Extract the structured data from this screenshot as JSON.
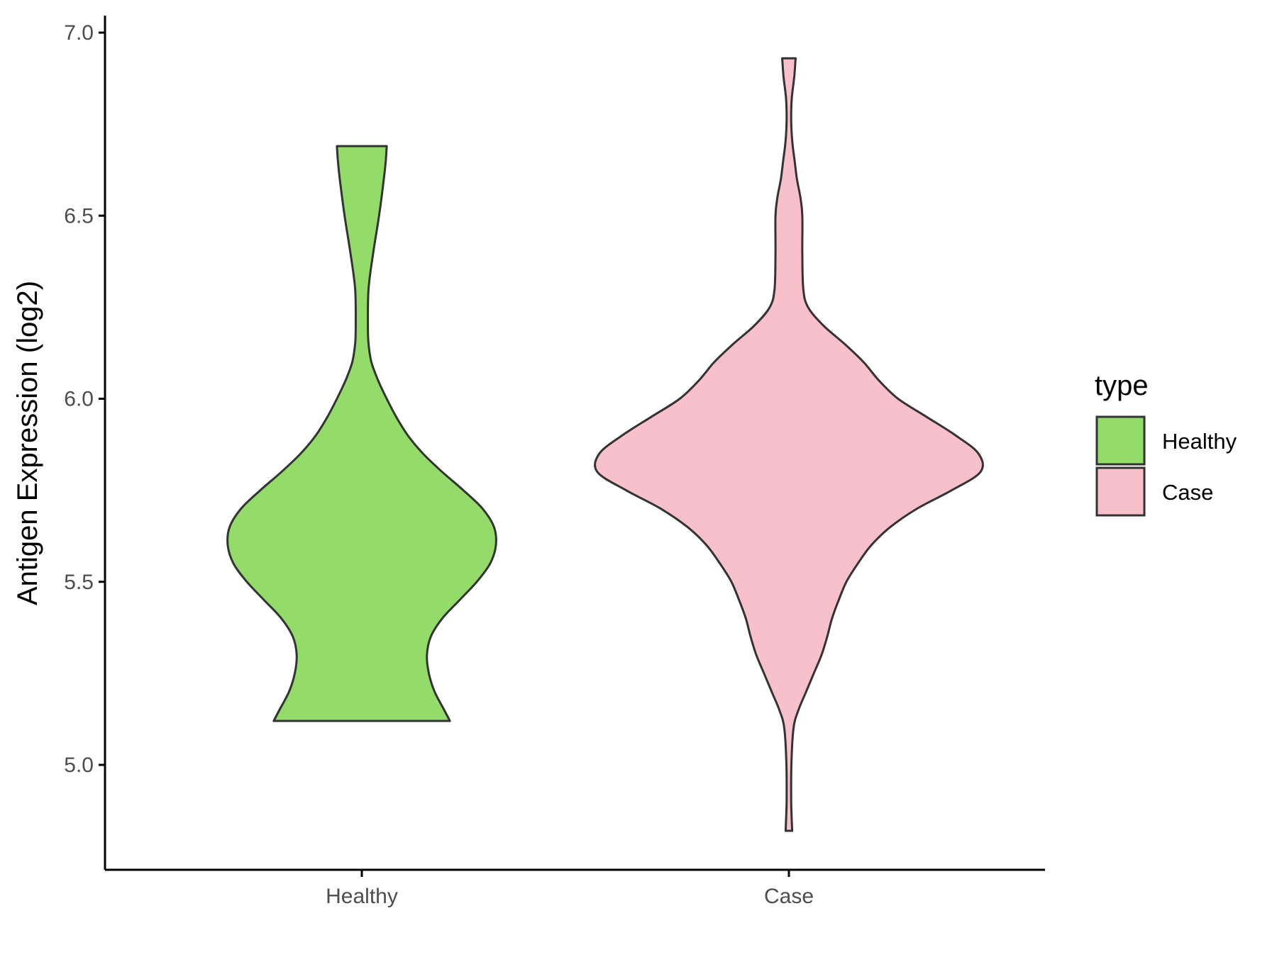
{
  "chart_data": {
    "type": "violin",
    "title": "",
    "xlabel": "",
    "ylabel": "Antigen Expression (log2)",
    "ylim": [
      4.75,
      7.05
    ],
    "yticks": [
      5.0,
      5.5,
      6.0,
      6.5,
      7.0
    ],
    "ytick_labels": [
      "5.0",
      "5.5",
      "6.0",
      "6.5",
      "7.0"
    ],
    "categories": [
      "Healthy",
      "Case"
    ],
    "grid": false,
    "legend": {
      "title": "type",
      "placement": "right",
      "entries": [
        "Healthy",
        "Case"
      ]
    },
    "series": [
      {
        "name": "Healthy",
        "color": "#93dc6a",
        "y_min": 5.12,
        "y_max": 6.69,
        "density_profile": [
          [
            5.12,
            0.46
          ],
          [
            5.15,
            0.43
          ],
          [
            5.2,
            0.38
          ],
          [
            5.25,
            0.35
          ],
          [
            5.3,
            0.34
          ],
          [
            5.35,
            0.36
          ],
          [
            5.4,
            0.42
          ],
          [
            5.45,
            0.51
          ],
          [
            5.5,
            0.6
          ],
          [
            5.55,
            0.67
          ],
          [
            5.6,
            0.7
          ],
          [
            5.65,
            0.69
          ],
          [
            5.7,
            0.63
          ],
          [
            5.75,
            0.53
          ],
          [
            5.8,
            0.42
          ],
          [
            5.85,
            0.32
          ],
          [
            5.9,
            0.24
          ],
          [
            5.95,
            0.18
          ],
          [
            6.0,
            0.13
          ],
          [
            6.05,
            0.085
          ],
          [
            6.1,
            0.05
          ],
          [
            6.15,
            0.035
          ],
          [
            6.2,
            0.032
          ],
          [
            6.3,
            0.035
          ],
          [
            6.4,
            0.06
          ],
          [
            6.5,
            0.09
          ],
          [
            6.6,
            0.115
          ],
          [
            6.65,
            0.125
          ],
          [
            6.69,
            0.13
          ]
        ]
      },
      {
        "name": "Case",
        "color": "#f8c0cb",
        "y_min": 4.82,
        "y_max": 6.93,
        "density_profile": [
          [
            4.82,
            0.017
          ],
          [
            4.9,
            0.012
          ],
          [
            5.0,
            0.013
          ],
          [
            5.1,
            0.024
          ],
          [
            5.15,
            0.05
          ],
          [
            5.2,
            0.09
          ],
          [
            5.25,
            0.13
          ],
          [
            5.3,
            0.17
          ],
          [
            5.35,
            0.2
          ],
          [
            5.4,
            0.225
          ],
          [
            5.45,
            0.26
          ],
          [
            5.5,
            0.3
          ],
          [
            5.55,
            0.36
          ],
          [
            5.6,
            0.43
          ],
          [
            5.65,
            0.53
          ],
          [
            5.7,
            0.67
          ],
          [
            5.75,
            0.85
          ],
          [
            5.8,
            1.0
          ],
          [
            5.85,
            0.99
          ],
          [
            5.9,
            0.87
          ],
          [
            5.95,
            0.72
          ],
          [
            6.0,
            0.57
          ],
          [
            6.05,
            0.47
          ],
          [
            6.1,
            0.39
          ],
          [
            6.15,
            0.29
          ],
          [
            6.2,
            0.18
          ],
          [
            6.25,
            0.1
          ],
          [
            6.3,
            0.075
          ],
          [
            6.4,
            0.07
          ],
          [
            6.5,
            0.07
          ],
          [
            6.55,
            0.06
          ],
          [
            6.6,
            0.042
          ],
          [
            6.65,
            0.03
          ],
          [
            6.7,
            0.018
          ],
          [
            6.76,
            0.012
          ],
          [
            6.82,
            0.015
          ],
          [
            6.88,
            0.028
          ],
          [
            6.93,
            0.035
          ]
        ]
      }
    ]
  }
}
